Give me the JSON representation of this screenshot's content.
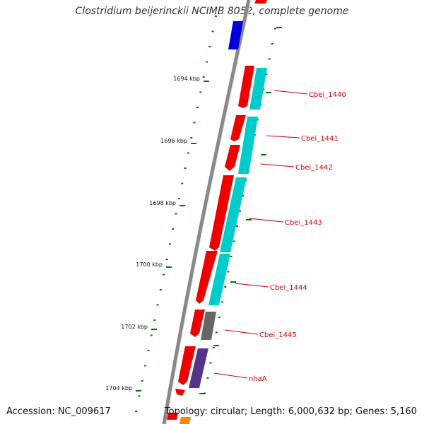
{
  "title": "Clostridium beijerinckii NCIMB 8052, complete genome",
  "footer": {
    "accession": "Accession: NC_009617",
    "stats": "Topology: circular; Length: 6,000,632 bp; Genes: 5,160"
  },
  "ticks": [
    "1694 kbp",
    "1696 kbp",
    "1698 kbp",
    "1700 kbp",
    "1702 kbp",
    "1704 kbp"
  ],
  "genes": [
    "Cbei_1440",
    "Cbei_1441",
    "Cbei_1442",
    "Cbei_1443",
    "Cbei_1444",
    "Cbei_1445",
    "nhaA"
  ],
  "colors": {
    "cds": "#ee0000",
    "gene_cyan": "#00cccc",
    "gene_gray": "#666666",
    "gene_purple": "#553388",
    "gene_blue": "#0000dd",
    "tick_green": "#007700",
    "label_red": "#cc0000"
  }
}
